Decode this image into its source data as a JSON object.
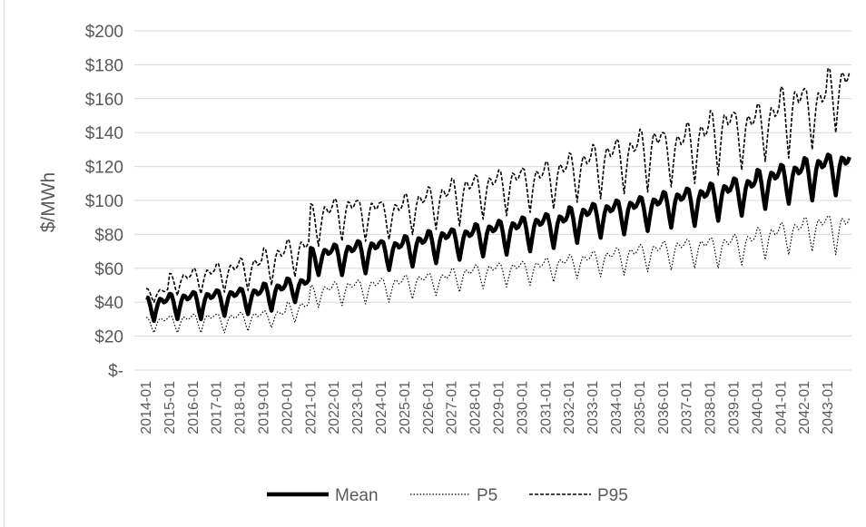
{
  "chart_data": {
    "type": "line",
    "title": "",
    "xlabel": "",
    "ylabel": "$/MWh",
    "ylim": [
      0,
      200
    ],
    "y_ticks": [
      {
        "value": 0,
        "label": "$-"
      },
      {
        "value": 20,
        "label": "$20"
      },
      {
        "value": 40,
        "label": "$40"
      },
      {
        "value": 60,
        "label": "$60"
      },
      {
        "value": 80,
        "label": "$80"
      },
      {
        "value": 100,
        "label": "$100"
      },
      {
        "value": 120,
        "label": "$120"
      },
      {
        "value": 140,
        "label": "$140"
      },
      {
        "value": 160,
        "label": "$160"
      },
      {
        "value": 180,
        "label": "$180"
      },
      {
        "value": 200,
        "label": "$200"
      }
    ],
    "x_tick_labels": [
      "2014-01",
      "2015-01",
      "2016-01",
      "2017-01",
      "2018-01",
      "2019-01",
      "2020-01",
      "2021-01",
      "2022-01",
      "2023-01",
      "2024-01",
      "2025-01",
      "2026-01",
      "2027-01",
      "2028-01",
      "2029-01",
      "2030-01",
      "2031-01",
      "2032-01",
      "2033-01",
      "2034-01",
      "2035-01",
      "2036-01",
      "2037-01",
      "2038-01",
      "2039-01",
      "2040-01",
      "2041-01",
      "2042-01",
      "2043-01"
    ],
    "grid": true,
    "legend_position": "bottom",
    "series": [
      {
        "name": "Mean",
        "style": "solid-thick",
        "color": "#000000",
        "annual_peak": [
          43,
          45,
          46,
          47,
          48,
          51,
          54,
          72,
          74,
          76,
          76,
          79,
          82,
          83,
          86,
          88,
          90,
          92,
          96,
          98,
          100,
          102,
          105,
          107,
          110,
          113,
          118,
          121,
          125,
          127
        ],
        "annual_trough": [
          29,
          30,
          30,
          32,
          33,
          35,
          40,
          56,
          56,
          57,
          59,
          61,
          63,
          65,
          67,
          68,
          70,
          72,
          75,
          78,
          80,
          82,
          84,
          85,
          88,
          91,
          95,
          98,
          100,
          103
        ]
      },
      {
        "name": "P5",
        "style": "dotted",
        "color": "#000000",
        "annual_peak": [
          31,
          32,
          33,
          33,
          34,
          35,
          40,
          50,
          52,
          53,
          54,
          56,
          57,
          60,
          62,
          63,
          64,
          66,
          68,
          70,
          72,
          74,
          76,
          77,
          78,
          80,
          84,
          87,
          90,
          91
        ],
        "annual_trough": [
          22,
          22,
          22,
          22,
          23,
          25,
          28,
          37,
          38,
          39,
          40,
          42,
          44,
          46,
          48,
          49,
          50,
          52,
          54,
          55,
          56,
          58,
          59,
          60,
          60,
          62,
          65,
          68,
          70,
          68
        ]
      },
      {
        "name": "P95",
        "style": "dashed",
        "color": "#000000",
        "annual_peak": [
          48,
          57,
          60,
          63,
          66,
          72,
          77,
          98,
          101,
          100,
          99,
          104,
          108,
          113,
          115,
          118,
          119,
          123,
          128,
          133,
          136,
          142,
          140,
          146,
          153,
          152,
          157,
          167,
          166,
          178
        ],
        "annual_trough": [
          40,
          44,
          45,
          46,
          47,
          50,
          55,
          73,
          76,
          76,
          77,
          80,
          83,
          85,
          89,
          91,
          93,
          95,
          99,
          101,
          104,
          105,
          108,
          110,
          115,
          118,
          123,
          125,
          130,
          140
        ]
      }
    ]
  }
}
